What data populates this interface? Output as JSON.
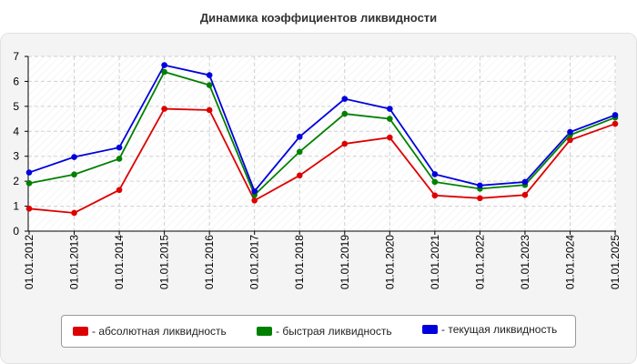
{
  "chart_data": {
    "type": "line",
    "title": "Динамика коэффициентов ликвидности",
    "xlabel": "",
    "ylabel": "",
    "ylim": [
      0,
      7
    ],
    "yticks": [
      0,
      1,
      2,
      3,
      4,
      5,
      6,
      7
    ],
    "grid": true,
    "legend_position": "bottom",
    "categories": [
      "01.01.2012",
      "01.01.2013",
      "01.01.2014",
      "01.01.2015",
      "01.01.2016",
      "01.01.2017",
      "01.01.2018",
      "01.01.2019",
      "01.01.2020",
      "01.01.2021",
      "01.01.2022",
      "01.01.2023",
      "01.01.2024",
      "01.01.2025"
    ],
    "series": [
      {
        "name": "- абсолютная ликвидность",
        "color": "#dd0000",
        "values": [
          0.9,
          0.73,
          1.65,
          4.9,
          4.85,
          1.23,
          2.23,
          3.5,
          3.75,
          1.43,
          1.32,
          1.45,
          3.65,
          4.3
        ]
      },
      {
        "name": "- быстрая ликвидность",
        "color": "#008000",
        "values": [
          1.92,
          2.27,
          2.9,
          6.38,
          5.85,
          1.45,
          3.18,
          4.7,
          4.5,
          1.97,
          1.7,
          1.85,
          3.85,
          4.55
        ]
      },
      {
        "name": "- текущая ликвидность",
        "color": "#0000dd",
        "values": [
          2.35,
          2.97,
          3.35,
          6.65,
          6.25,
          1.6,
          3.78,
          5.3,
          4.9,
          2.28,
          1.83,
          1.97,
          3.97,
          4.65
        ]
      }
    ]
  }
}
